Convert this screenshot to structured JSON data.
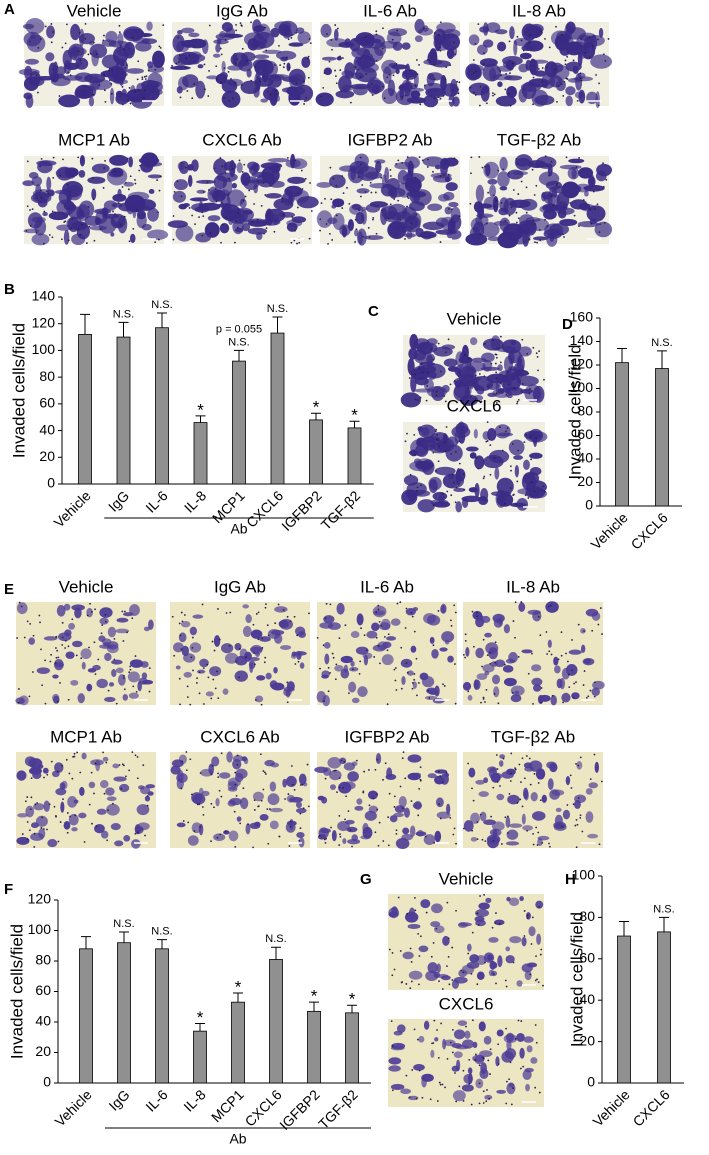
{
  "panel_a": {
    "label": "A",
    "titles": [
      "Vehicle",
      "IgG Ab",
      "IL-6 Ab",
      "IL-8 Ab",
      "MCP1 Ab",
      "CXCL6 Ab",
      "IGFBP2 Ab",
      "TGF-β2 Ab"
    ]
  },
  "panel_c": {
    "label": "C",
    "titles": [
      "Vehicle",
      "CXCL6"
    ]
  },
  "panel_e": {
    "label": "E",
    "titles": [
      "Vehicle",
      "IgG Ab",
      "IL-6 Ab",
      "IL-8 Ab",
      "MCP1 Ab",
      "CXCL6 Ab",
      "IGFBP2 Ab",
      "TGF-β2 Ab"
    ]
  },
  "panel_g": {
    "label": "G",
    "titles": [
      "Vehicle",
      "CXCL6"
    ]
  },
  "chart_data": [
    {
      "type": "bar",
      "panel_label": "B",
      "y_label": "Invaded cells/field",
      "color": "#909090",
      "categories": [
        "Vehicle",
        "IgG",
        "IL-6",
        "IL-8",
        "MCP1",
        "CXCL6",
        "IGFBP2",
        "TGF-β2"
      ],
      "values": [
        112,
        110,
        117,
        46,
        92,
        113,
        48,
        42
      ],
      "errors": [
        15,
        11,
        11,
        5,
        8,
        12,
        5,
        5
      ],
      "markers": [
        null,
        "N.S.",
        "N.S.",
        "*",
        [
          "p = 0.055",
          "N.S."
        ],
        "N.S.",
        "*",
        "*"
      ],
      "group_label": "Ab",
      "ylim": [
        0,
        140
      ],
      "yticks": [
        0,
        20,
        40,
        60,
        80,
        100,
        120,
        140
      ]
    },
    {
      "type": "bar",
      "panel_label": "D",
      "y_label": "Invaded cells/field",
      "color": "#909090",
      "categories": [
        "Vehicle",
        "CXCL6"
      ],
      "values": [
        122,
        117
      ],
      "errors": [
        12,
        15
      ],
      "markers": [
        null,
        "N.S."
      ],
      "ylim": [
        0,
        160
      ],
      "yticks": [
        0,
        20,
        40,
        60,
        80,
        100,
        120,
        140,
        160
      ]
    },
    {
      "type": "bar",
      "panel_label": "F",
      "y_label": "Invaded cells/field",
      "color": "#909090",
      "categories": [
        "Vehicle",
        "IgG",
        "IL-6",
        "IL-8",
        "MCP1",
        "CXCL6",
        "IGFBP2",
        "TGF-β2"
      ],
      "values": [
        88,
        92,
        88,
        34,
        53,
        81,
        47,
        46
      ],
      "errors": [
        8,
        7,
        6,
        5,
        6,
        8,
        6,
        5
      ],
      "markers": [
        null,
        "N.S.",
        "N.S.",
        "*",
        "*",
        "N.S.",
        "*",
        "*"
      ],
      "group_label": "Ab",
      "ylim": [
        0,
        120
      ],
      "yticks": [
        0,
        20,
        40,
        60,
        80,
        100,
        120
      ]
    },
    {
      "type": "bar",
      "panel_label": "H",
      "y_label": "Invaded cells/field",
      "color": "#909090",
      "categories": [
        "Vehicle",
        "CXCL6"
      ],
      "values": [
        71,
        73
      ],
      "errors": [
        7,
        7
      ],
      "markers": [
        null,
        "N.S."
      ],
      "ylim": [
        0,
        100
      ],
      "yticks": [
        0,
        20,
        40,
        60,
        80,
        100
      ]
    }
  ]
}
